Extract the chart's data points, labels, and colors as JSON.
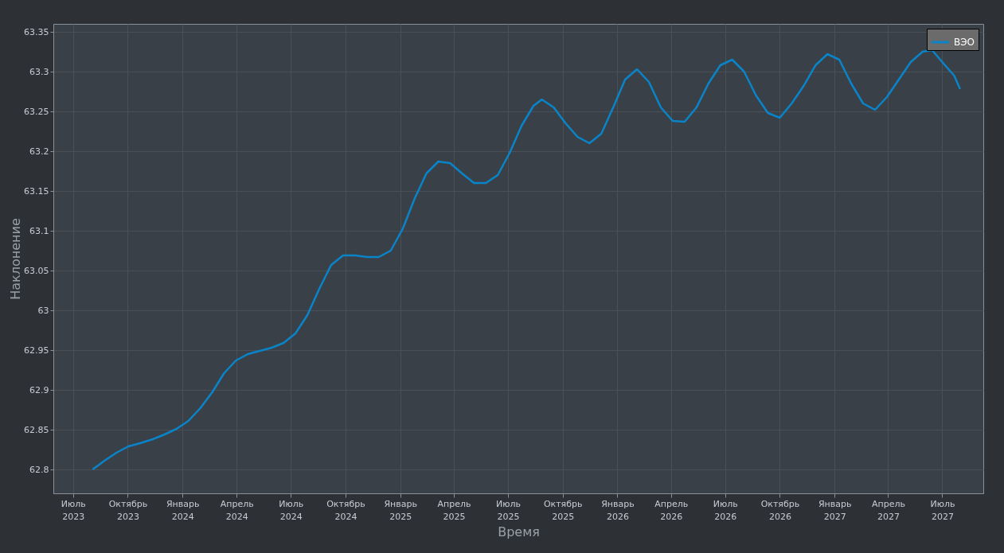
{
  "chart_data": {
    "type": "line",
    "xlabel": "Время",
    "ylabel": "Наклонение",
    "x": [
      "2023-08-03",
      "2023-08-23",
      "2023-09-12",
      "2023-10-02",
      "2023-10-22",
      "2023-11-12",
      "2023-12-02",
      "2023-12-22",
      "2024-01-11",
      "2024-01-31",
      "2024-02-20",
      "2024-03-11",
      "2024-03-31",
      "2024-04-20",
      "2024-05-10",
      "2024-05-30",
      "2024-06-19",
      "2024-07-09",
      "2024-07-29",
      "2024-08-18",
      "2024-09-07",
      "2024-09-27",
      "2024-10-17",
      "2024-11-06",
      "2024-11-26",
      "2024-12-16",
      "2025-01-05",
      "2025-01-25",
      "2025-02-14",
      "2025-03-06",
      "2025-03-26",
      "2025-04-15",
      "2025-05-05",
      "2025-05-25",
      "2025-06-14",
      "2025-07-04",
      "2025-07-24",
      "2025-08-13",
      "2025-08-27",
      "2025-09-16",
      "2025-10-06",
      "2025-10-26",
      "2025-11-15",
      "2025-12-05",
      "2025-12-25",
      "2026-01-14",
      "2026-02-03",
      "2026-02-23",
      "2026-03-15",
      "2026-04-04",
      "2026-04-24",
      "2026-05-14",
      "2026-06-03",
      "2026-06-23",
      "2026-07-13",
      "2026-08-02",
      "2026-08-22",
      "2026-09-11",
      "2026-10-01",
      "2026-10-21",
      "2026-11-10",
      "2026-11-30",
      "2026-12-20",
      "2027-01-09",
      "2027-01-29",
      "2027-02-18",
      "2027-03-10",
      "2027-03-30",
      "2027-04-19",
      "2027-05-09",
      "2027-05-29",
      "2027-06-14",
      "2027-07-01",
      "2027-07-21",
      "2027-07-31"
    ],
    "series": [
      {
        "name": "ВЭО",
        "color": "#0a84c8",
        "values": [
          62.8,
          62.811,
          62.821,
          62.829,
          62.833,
          62.838,
          62.844,
          62.851,
          62.861,
          62.877,
          62.897,
          62.921,
          62.937,
          62.945,
          62.949,
          62.953,
          62.959,
          62.971,
          62.994,
          63.027,
          63.057,
          63.069,
          63.069,
          63.067,
          63.067,
          63.075,
          63.102,
          63.14,
          63.172,
          63.187,
          63.185,
          63.172,
          63.16,
          63.16,
          63.17,
          63.198,
          63.232,
          63.257,
          63.265,
          63.255,
          63.235,
          63.218,
          63.21,
          63.222,
          63.255,
          63.29,
          63.303,
          63.287,
          63.255,
          63.238,
          63.237,
          63.255,
          63.285,
          63.308,
          63.315,
          63.3,
          63.27,
          63.248,
          63.242,
          63.26,
          63.282,
          63.308,
          63.322,
          63.315,
          63.285,
          63.26,
          63.252,
          63.268,
          63.29,
          63.312,
          63.325,
          63.327,
          63.312,
          63.295,
          63.278
        ]
      }
    ],
    "xlim": [
      "2023-05-29",
      "2027-09-08"
    ],
    "xticks": [
      {
        "value": "2023-07-01",
        "label": "Июль\n2023"
      },
      {
        "value": "2023-10-01",
        "label": "Октябрь\n2023"
      },
      {
        "value": "2024-01-01",
        "label": "Январь\n2024"
      },
      {
        "value": "2024-04-01",
        "label": "Апрель\n2024"
      },
      {
        "value": "2024-07-01",
        "label": "Июль\n2024"
      },
      {
        "value": "2024-10-01",
        "label": "Октябрь\n2024"
      },
      {
        "value": "2025-01-01",
        "label": "Январь\n2025"
      },
      {
        "value": "2025-04-01",
        "label": "Апрель\n2025"
      },
      {
        "value": "2025-07-01",
        "label": "Июль\n2025"
      },
      {
        "value": "2025-10-01",
        "label": "Октябрь\n2025"
      },
      {
        "value": "2026-01-01",
        "label": "Январь\n2026"
      },
      {
        "value": "2026-04-01",
        "label": "Апрель\n2026"
      },
      {
        "value": "2026-07-01",
        "label": "Июль\n2026"
      },
      {
        "value": "2026-10-01",
        "label": "Октябрь\n2026"
      },
      {
        "value": "2027-01-01",
        "label": "Январь\n2027"
      },
      {
        "value": "2027-04-01",
        "label": "Апрель\n2027"
      },
      {
        "value": "2027-07-01",
        "label": "Июль\n2027"
      }
    ],
    "ylim": [
      62.77,
      63.36
    ],
    "yticks": [
      62.8,
      62.85,
      62.9,
      62.95,
      63,
      63.05,
      63.1,
      63.15,
      63.2,
      63.25,
      63.3,
      63.35
    ],
    "grid": true,
    "legend": "top right",
    "marker": "none",
    "line_style": "solid"
  }
}
